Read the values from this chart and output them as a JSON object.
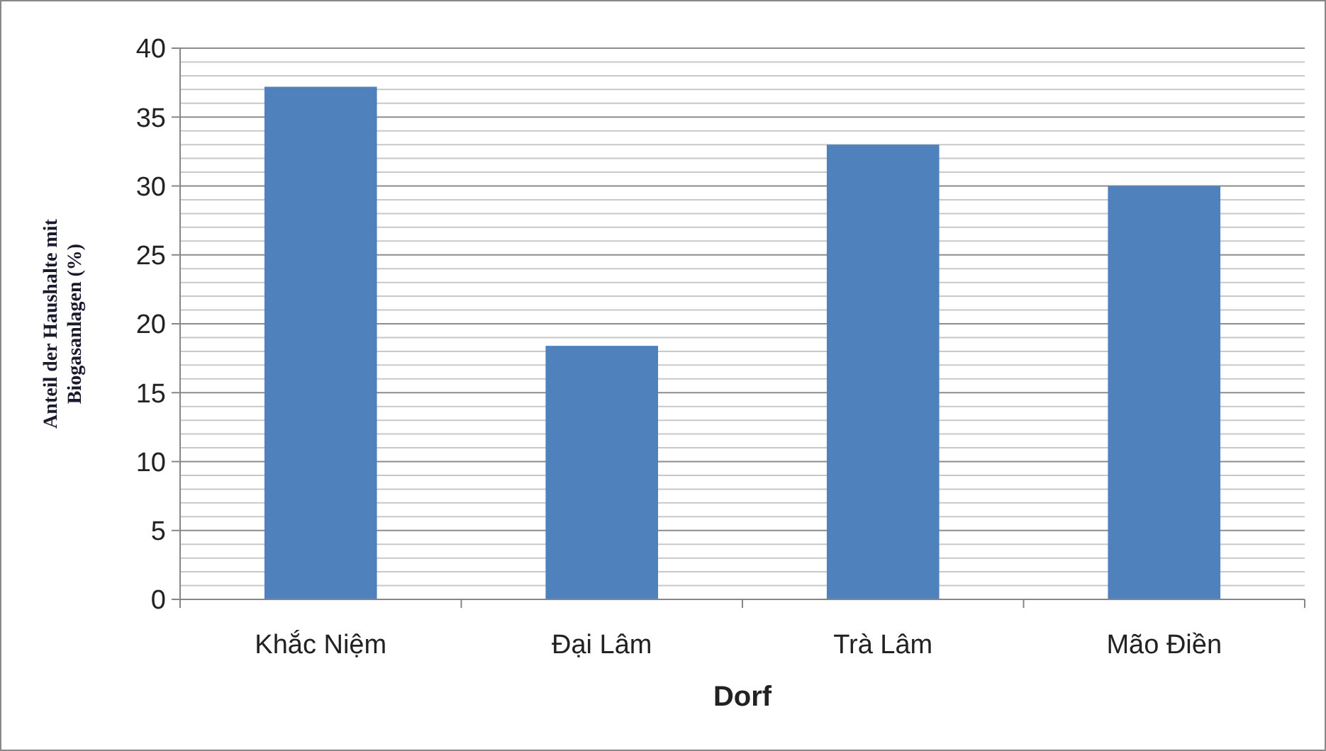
{
  "chart_data": {
    "type": "bar",
    "xlabel": "Dorf",
    "ylabel": "Anteil der Haushalte mit Biogasanlagen (%)",
    "categories": [
      "Khắc Niệm",
      "Đại Lâm",
      "Trà Lâm",
      "Mão Điền"
    ],
    "values": [
      37.2,
      18.4,
      33,
      30
    ],
    "color": "#4f81bd",
    "ylim": [
      0,
      40
    ],
    "yticks": [
      0,
      5,
      10,
      15,
      20,
      25,
      30,
      35,
      40
    ],
    "grid": true
  }
}
